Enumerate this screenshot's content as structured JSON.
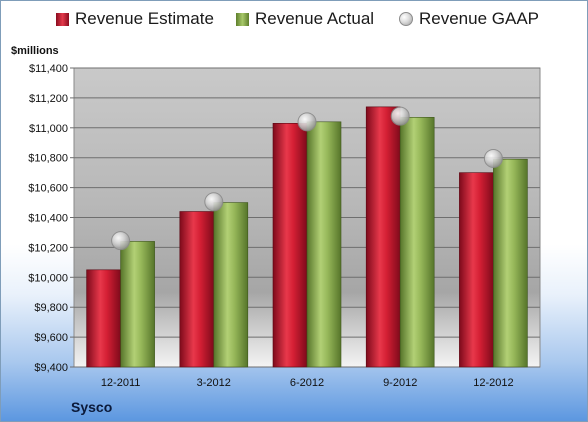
{
  "chart_data": {
    "type": "bar",
    "unit_label": "$millions",
    "company": "Sysco",
    "categories": [
      "12-2011",
      "3-2012",
      "6-2012",
      "9-2012",
      "12-2012"
    ],
    "series": [
      {
        "name": "Revenue Estimate",
        "kind": "bar",
        "color": "#c8102e",
        "values": [
          10050,
          10440,
          11030,
          11140,
          10700
        ]
      },
      {
        "name": "Revenue Actual",
        "kind": "bar",
        "color": "#8db04e",
        "values": [
          10240,
          10500,
          11040,
          11070,
          10790
        ]
      },
      {
        "name": "Revenue GAAP",
        "kind": "marker",
        "color": "#c0c0c0",
        "values": [
          10245,
          10505,
          11040,
          11078,
          10795
        ]
      }
    ],
    "ylim": [
      9400,
      11400
    ],
    "yticks": [
      "$9,400",
      "$9,600",
      "$9,800",
      "$10,000",
      "$10,200",
      "$10,400",
      "$10,600",
      "$10,800",
      "$11,000",
      "$11,200",
      "$11,400"
    ],
    "ytick_values": [
      9400,
      9600,
      9800,
      10000,
      10200,
      10400,
      10600,
      10800,
      11000,
      11200,
      11400
    ],
    "grid": true,
    "legend_position": "top"
  }
}
